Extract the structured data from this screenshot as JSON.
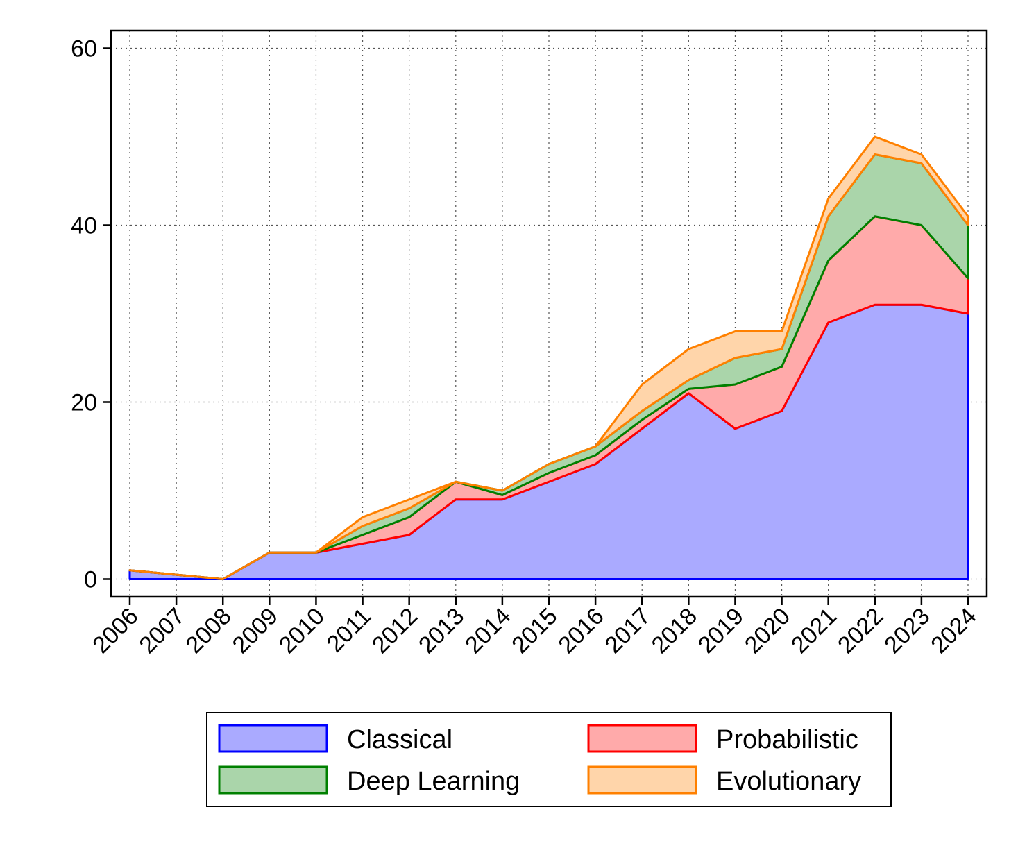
{
  "chart_data": {
    "type": "area",
    "stacked": true,
    "title": "",
    "xlabel": "",
    "ylabel": "",
    "x": [
      "2006",
      "2007",
      "2008",
      "2009",
      "2010",
      "2011",
      "2012",
      "2013",
      "2014",
      "2015",
      "2016",
      "2017",
      "2018",
      "2019",
      "2020",
      "2021",
      "2022",
      "2023",
      "2024"
    ],
    "ylim": [
      -2,
      62
    ],
    "yticks": [
      0,
      20,
      40,
      60
    ],
    "grid": true,
    "legend_position": "bottom",
    "series": [
      {
        "name": "Classical",
        "line_color": "#0000ff",
        "fill_color": "#aaaaff",
        "values": [
          1,
          0.5,
          0,
          3,
          3,
          4,
          5,
          9,
          9,
          11,
          13,
          17,
          21,
          17,
          19,
          29,
          31,
          31,
          30
        ]
      },
      {
        "name": "Probabilistic",
        "line_color": "#ff0000",
        "fill_color": "#ffaaaa",
        "values": [
          0,
          0,
          0,
          0,
          0,
          1,
          2,
          2,
          0.5,
          1,
          1,
          1,
          0.5,
          5,
          5,
          7,
          10,
          9,
          4
        ]
      },
      {
        "name": "Deep Learning",
        "line_color": "#008000",
        "fill_color": "#aad5aa",
        "values": [
          0,
          0,
          0,
          0,
          0,
          1,
          1,
          0,
          0.5,
          1,
          1,
          1,
          1,
          3,
          2,
          5,
          7,
          7,
          6
        ]
      },
      {
        "name": "Evolutionary",
        "line_color": "#ff8000",
        "fill_color": "#ffd5aa",
        "values": [
          0,
          0,
          0,
          0,
          0,
          1,
          1,
          0,
          0,
          0,
          0,
          3,
          3.5,
          3,
          2,
          2,
          2,
          1,
          1
        ]
      }
    ],
    "legend_order": [
      "Classical",
      "Probabilistic",
      "Deep Learning",
      "Evolutionary"
    ]
  }
}
